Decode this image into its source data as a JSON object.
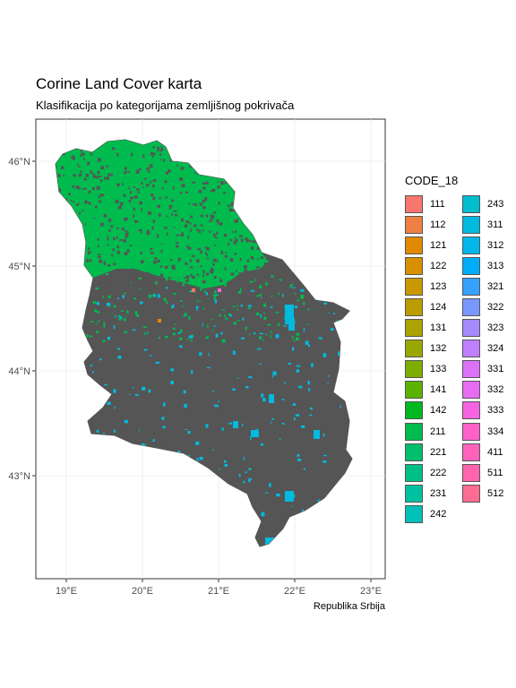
{
  "title": "Corine Land Cover karta",
  "subtitle": "Klasifikacija po kategorijama zemljišnog pokrivača",
  "caption": "Republika Srbija",
  "axes": {
    "x_ticks": [
      "19°E",
      "20°E",
      "21°E",
      "22°E",
      "23°E"
    ],
    "y_ticks": [
      "46°N",
      "45°N",
      "44°N",
      "43°N"
    ]
  },
  "legend": {
    "title": "CODE_18",
    "items": [
      {
        "code": "111",
        "color": "#F8766D"
      },
      {
        "code": "112",
        "color": "#EE8044"
      },
      {
        "code": "121",
        "color": "#E38900"
      },
      {
        "code": "122",
        "color": "#D89000"
      },
      {
        "code": "123",
        "color": "#C99800"
      },
      {
        "code": "124",
        "color": "#BB9D00"
      },
      {
        "code": "131",
        "color": "#ABA300"
      },
      {
        "code": "132",
        "color": "#99A800"
      },
      {
        "code": "133",
        "color": "#7CAE00"
      },
      {
        "code": "141",
        "color": "#5BB300"
      },
      {
        "code": "142",
        "color": "#00B81F"
      },
      {
        "code": "211",
        "color": "#00BB4E"
      },
      {
        "code": "221",
        "color": "#00BE6C"
      },
      {
        "code": "222",
        "color": "#00C087"
      },
      {
        "code": "231",
        "color": "#00C19F"
      },
      {
        "code": "242",
        "color": "#00C0B8"
      },
      {
        "code": "243",
        "color": "#00BDD0"
      },
      {
        "code": "311",
        "color": "#00BAE0"
      },
      {
        "code": "312",
        "color": "#00B6EB"
      },
      {
        "code": "313",
        "color": "#00ADFA"
      },
      {
        "code": "321",
        "color": "#35A2FF"
      },
      {
        "code": "322",
        "color": "#7997FF"
      },
      {
        "code": "323",
        "color": "#A58AFF"
      },
      {
        "code": "324",
        "color": "#BF80FF"
      },
      {
        "code": "331",
        "color": "#DC71FA"
      },
      {
        "code": "332",
        "color": "#E86BF3"
      },
      {
        "code": "333",
        "color": "#F763E0"
      },
      {
        "code": "334",
        "color": "#FF61C9"
      },
      {
        "code": "411",
        "color": "#FF62BC"
      },
      {
        "code": "511",
        "color": "#FF65AC"
      },
      {
        "code": "512",
        "color": "#FF6C91"
      }
    ]
  },
  "map": {
    "base_color": "#555555",
    "north_color": "#00BB4E",
    "forest_color": "#00BAE0",
    "region": "Republika Srbija"
  }
}
